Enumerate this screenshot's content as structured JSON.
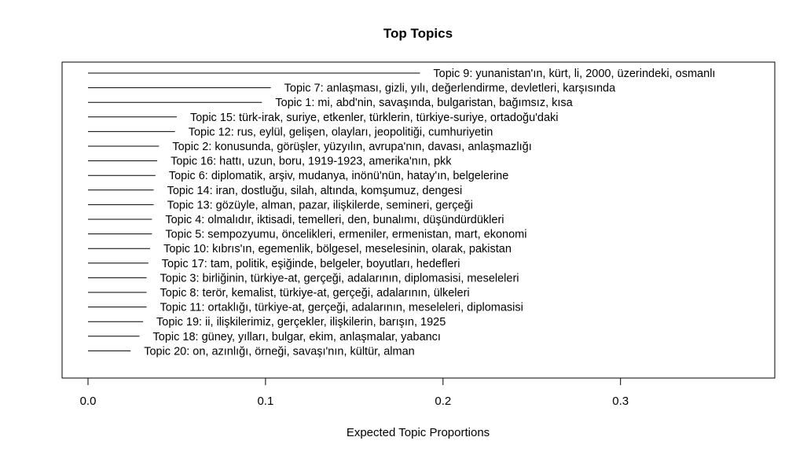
{
  "chart_data": {
    "type": "bar",
    "title": "Top Topics",
    "xlabel": "Expected Topic Proportions",
    "ylabel": "",
    "xlim": [
      0,
      0.38
    ],
    "xticks": [
      "0.0",
      "0.1",
      "0.2",
      "0.3"
    ],
    "xtick_values": [
      0.0,
      0.1,
      0.2,
      0.3
    ],
    "grid": false,
    "legend": "none",
    "orientation": "horizontal",
    "categories": [
      "Topic 9: yunanistan'ın, kürt, li, 2000, üzerindeki, osmanlı",
      "Topic 7: anlaşması, gizli, yılı, değerlendirme, devletleri, karşısında",
      "Topic 1: mi, abd'nin, savaşında, bulgaristan, bağımsız, kısa",
      "Topic 15: türk-irak, suriye, etkenler, türklerin, türkiye-suriye, ortadoğu'daki",
      "Topic 12: rus, eylül, gelişen, olayları, jeopolitiği, cumhuriyetin",
      "Topic 2: konusunda, görüşler, yüzyılın, avrupa'nın, davası, anlaşmazlığı",
      "Topic 16: hattı, uzun, boru, 1919-1923, amerika'nın, pkk",
      "Topic 6: diplomatik, arşiv, mudanya, inönü'nün, hatay'ın, belgelerine",
      "Topic 14: iran, dostluğu, silah, altında, komşumuz, dengesi",
      "Topic 13: gözüyle, alman, pazar, ilişkilerde, semineri, gerçeği",
      "Topic 4: olmalıdır, iktisadi, temelleri, den, bunalımı, düşündürdükleri",
      "Topic 5: sempozyumu, öncelikleri, ermeniler, ermenistan, mart, ekonomi",
      "Topic 10: kıbrıs'ın, egemenlik, bölgesel, meselesinin, olarak, pakistan",
      "Topic 17: tam, politik, eşiğinde, belgeler, boyutları, hedefleri",
      "Topic 3: birliğinin, türkiye-at, gerçeği, adalarının, diplomasisi, meseleleri",
      "Topic 8: terör, kemalist, türkiye-at, gerçeği, adalarının, ülkeleri",
      "Topic 11: ortaklığı, türkiye-at, gerçeği, adalarının, meseleleri, diplomasisi",
      "Topic 19: ii, ilişkilerimiz, gerçekler, ilişkilerin, barışın, 1925",
      "Topic 18: güney, yılları, bulgar, ekim, anlaşmalar, yabancı",
      "Topic 20: on, azınlığı, örneği, savaşı'nın, kültür, alman"
    ],
    "values": [
      0.187,
      0.103,
      0.098,
      0.05,
      0.049,
      0.04,
      0.039,
      0.038,
      0.037,
      0.037,
      0.036,
      0.036,
      0.035,
      0.034,
      0.033,
      0.033,
      0.033,
      0.031,
      0.029,
      0.024
    ]
  }
}
